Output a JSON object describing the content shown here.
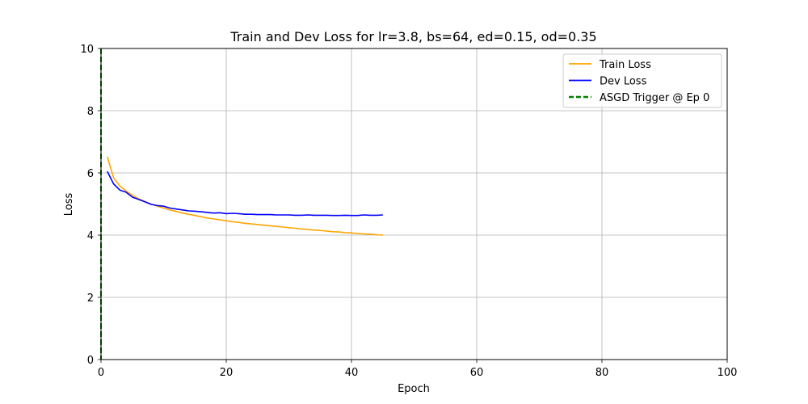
{
  "chart_data": {
    "type": "line",
    "title": "Train and Dev Loss for lr=3.8, bs=64, ed=0.15, od=0.35",
    "xlabel": "Epoch",
    "ylabel": "Loss",
    "xlim": [
      0,
      100
    ],
    "ylim": [
      0,
      10
    ],
    "xticks": [
      "0",
      "20",
      "40",
      "60",
      "80",
      "100"
    ],
    "yticks": [
      "0",
      "2",
      "4",
      "6",
      "8",
      "10"
    ],
    "grid": true,
    "legend_position": "top-right",
    "x": [
      1,
      2,
      3,
      4,
      5,
      6,
      7,
      8,
      9,
      10,
      11,
      12,
      13,
      14,
      15,
      16,
      17,
      18,
      19,
      20,
      21,
      22,
      23,
      24,
      25,
      26,
      27,
      28,
      29,
      30,
      31,
      32,
      33,
      34,
      35,
      36,
      37,
      38,
      39,
      40,
      41,
      42,
      43,
      44,
      45
    ],
    "series": [
      {
        "name": "Train Loss",
        "color": "#ffa500",
        "style": "solid",
        "values": [
          6.52,
          5.85,
          5.58,
          5.42,
          5.28,
          5.17,
          5.08,
          5.0,
          4.93,
          4.87,
          4.81,
          4.76,
          4.71,
          4.67,
          4.63,
          4.59,
          4.55,
          4.52,
          4.49,
          4.46,
          4.43,
          4.41,
          4.38,
          4.36,
          4.34,
          4.32,
          4.3,
          4.28,
          4.26,
          4.24,
          4.22,
          4.2,
          4.18,
          4.16,
          4.15,
          4.13,
          4.11,
          4.1,
          4.08,
          4.07,
          4.05,
          4.04,
          4.03,
          4.01,
          4.0
        ]
      },
      {
        "name": "Dev Loss",
        "color": "#0000ff",
        "style": "solid",
        "values": [
          6.05,
          5.65,
          5.45,
          5.38,
          5.22,
          5.15,
          5.07,
          4.99,
          4.95,
          4.93,
          4.87,
          4.84,
          4.81,
          4.78,
          4.77,
          4.75,
          4.73,
          4.71,
          4.72,
          4.69,
          4.7,
          4.69,
          4.67,
          4.67,
          4.66,
          4.66,
          4.66,
          4.65,
          4.65,
          4.65,
          4.64,
          4.64,
          4.65,
          4.64,
          4.64,
          4.64,
          4.63,
          4.63,
          4.64,
          4.63,
          4.63,
          4.65,
          4.64,
          4.64,
          4.65
        ]
      }
    ],
    "vlines": [
      {
        "name": "ASGD Trigger @ Ep 0",
        "x": 0,
        "color": "#008000",
        "style": "dashed"
      }
    ]
  }
}
